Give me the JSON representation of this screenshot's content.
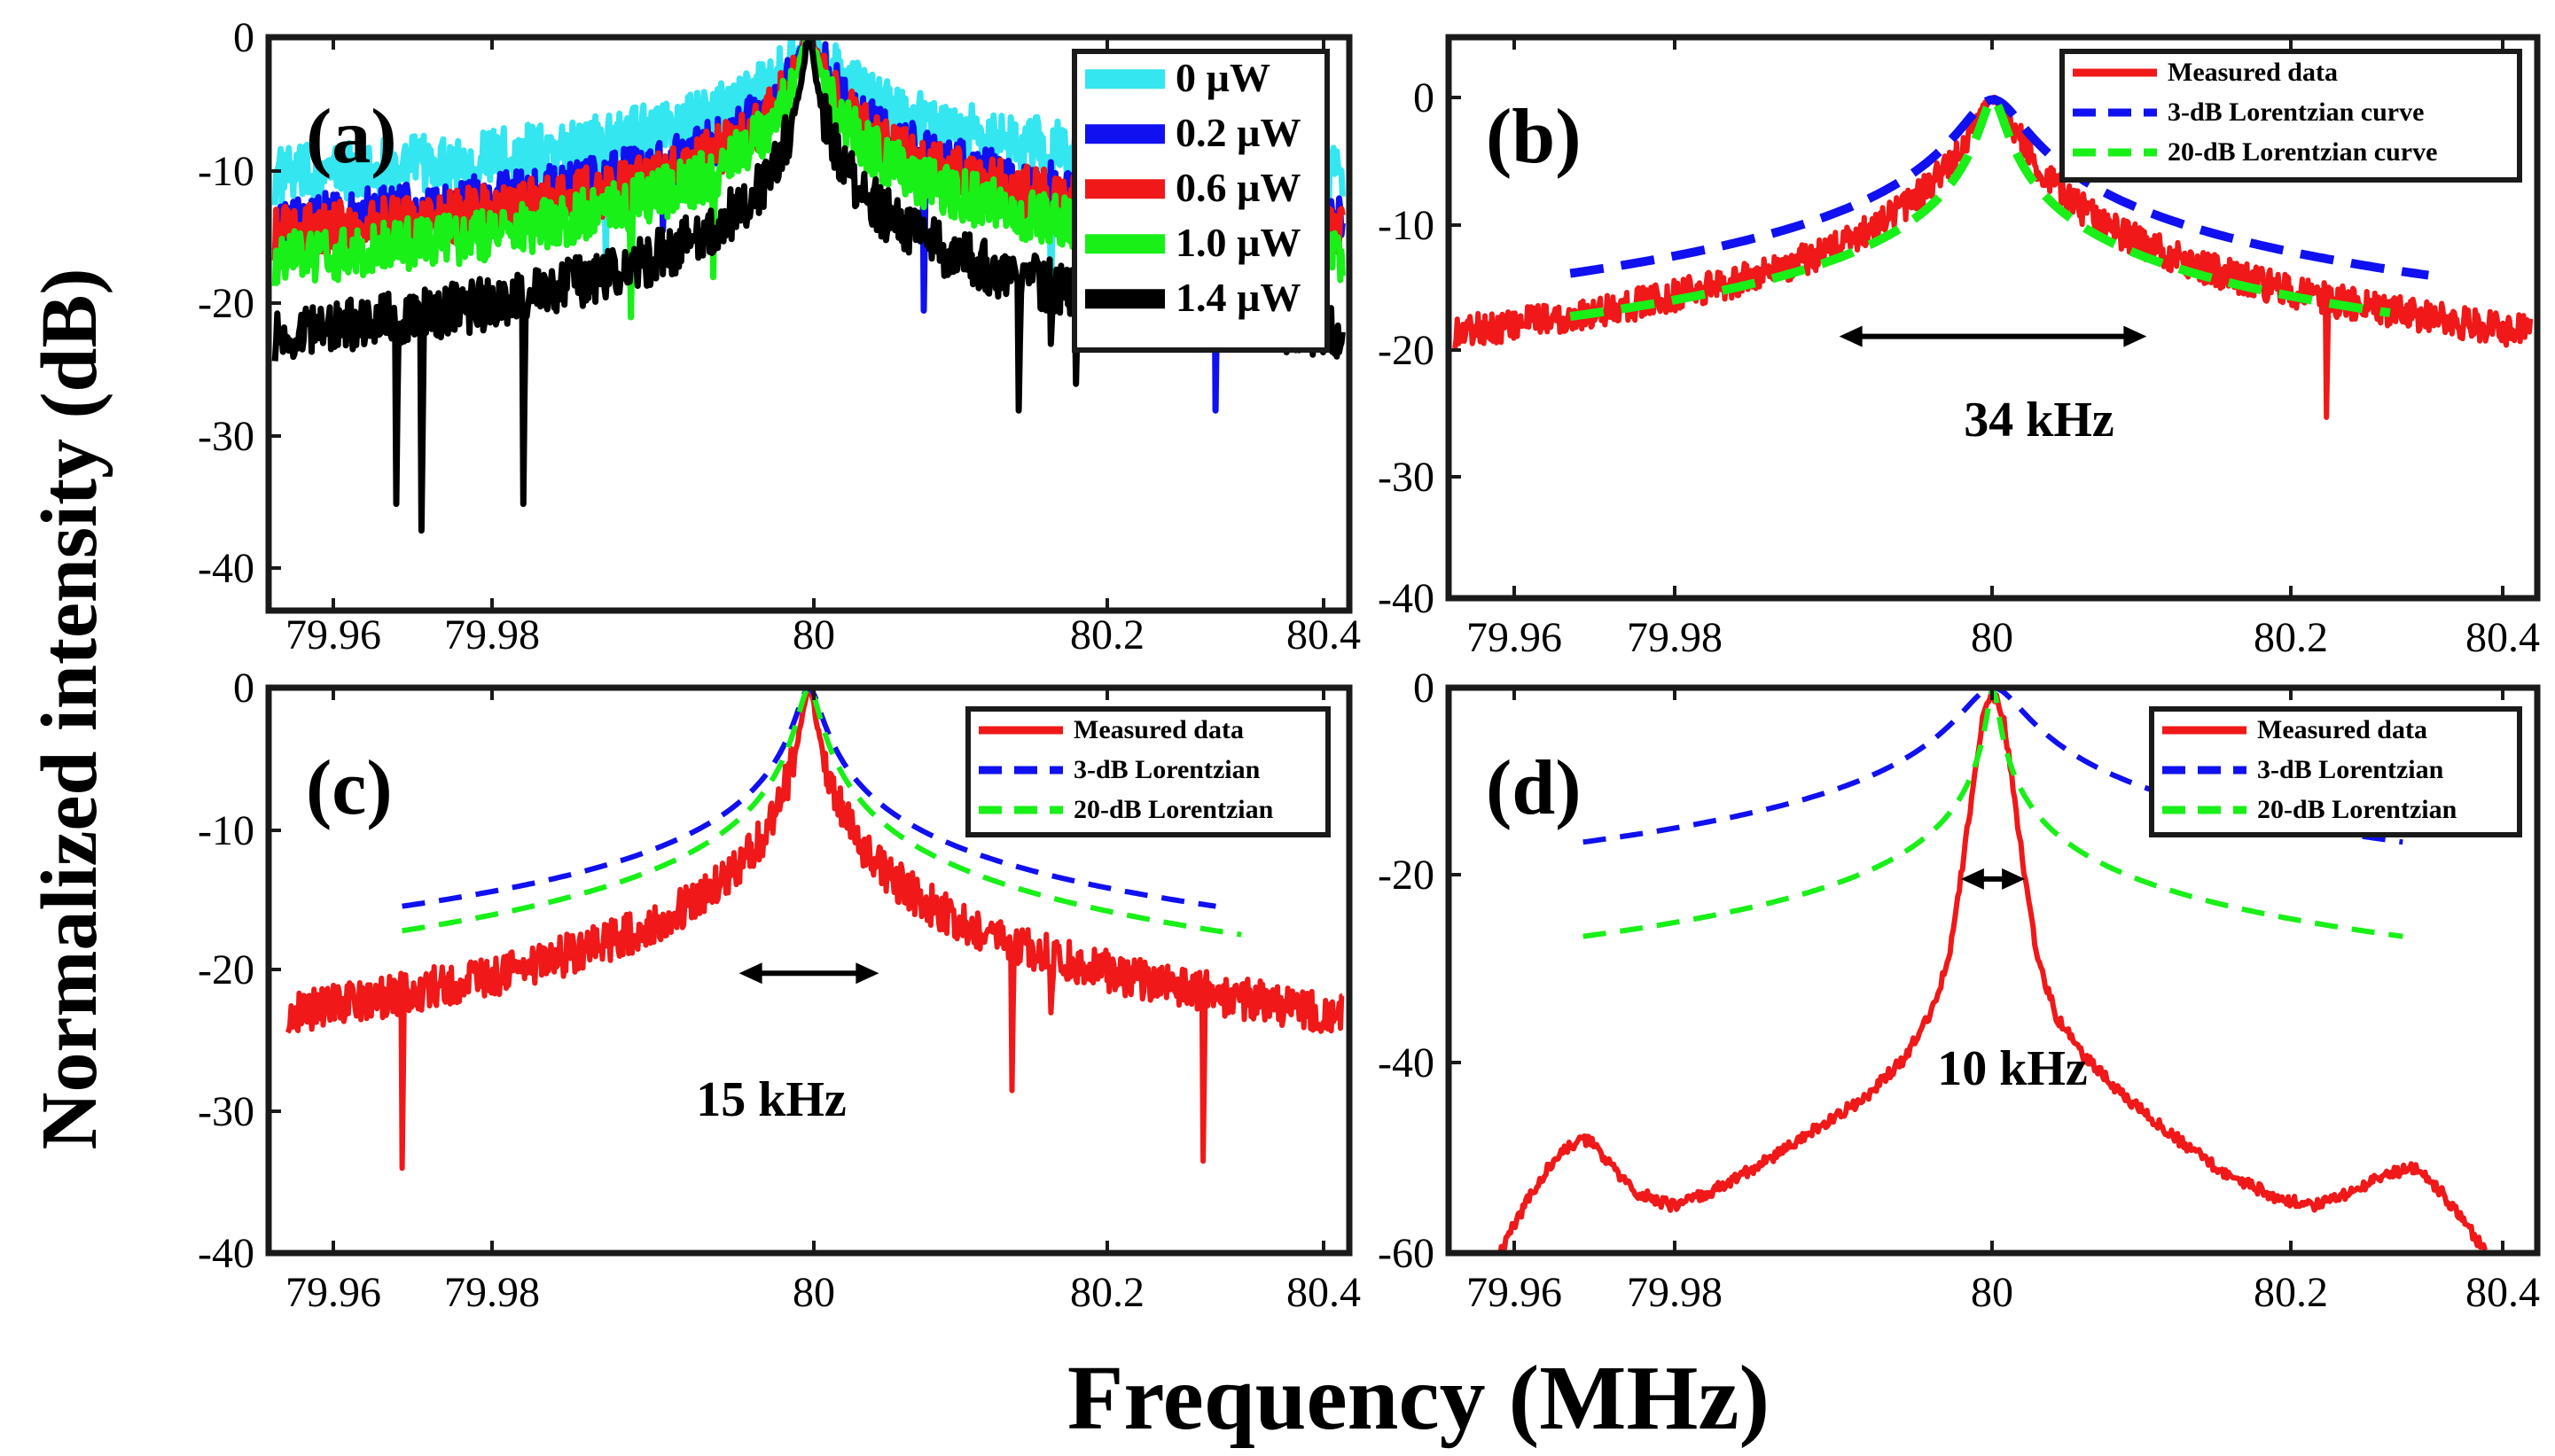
{
  "figure": {
    "ylabel": "Normalized intensity (dB)",
    "xlabel": "Frequency (MHz)"
  },
  "chart_data": [
    {
      "id": "a",
      "type": "line",
      "panel_label": "(a)",
      "x_ticks": [
        "79.96",
        "79.98",
        "80",
        "80.2",
        "80.4"
      ],
      "y_ticks": [
        "0",
        "-10",
        "-20",
        "-30",
        "-40"
      ],
      "ylim": [
        -43,
        0
      ],
      "legend_position": "top-right",
      "series": [
        {
          "name": "0 µW",
          "color": "#33e6f0",
          "dash": "solid",
          "style": "noisy",
          "center": -10.3,
          "width": 0.85,
          "tail": -33,
          "noise": 2.2,
          "x_range": [
            -42,
            42
          ],
          "spurs": [
            [
              -16,
              -16.5
            ],
            [
              19,
              -21.5
            ]
          ]
        },
        {
          "name": "0.2 µW",
          "color": "#1010f0",
          "dash": "solid",
          "style": "noisy",
          "center": -13.8,
          "width": 0.7,
          "tail": -36,
          "noise": 2.0,
          "x_range": [
            -42,
            42
          ],
          "spurs": [
            [
              -11.5,
              -14.5
            ],
            [
              9,
              -20.5
            ],
            [
              32,
              -28
            ]
          ]
        },
        {
          "name": "0.6 µW",
          "color": "#f01818",
          "dash": "solid",
          "style": "noisy",
          "center": -14.6,
          "width": 0.6,
          "tail": -36.5,
          "noise": 2.0,
          "x_range": [
            -42,
            42
          ],
          "spurs": []
        },
        {
          "name": "1.0 µW",
          "color": "#18f018",
          "dash": "solid",
          "style": "noisy",
          "center": -16.5,
          "width": 0.55,
          "tail": -37.5,
          "noise": 2.0,
          "x_range": [
            -42,
            42
          ],
          "spurs": [
            [
              -14,
              -21
            ],
            [
              -7.5,
              -18
            ]
          ]
        },
        {
          "name": "1.4 µW",
          "color": "#000000",
          "dash": "solid",
          "style": "noisy",
          "center": -22.1,
          "width": 0.35,
          "tail": -40,
          "noise": 2.0,
          "x_range": [
            -42,
            42
          ],
          "spurs": [
            [
              -32.5,
              -35
            ],
            [
              -30.5,
              -37
            ],
            [
              -22.5,
              -35
            ],
            [
              16.5,
              -28
            ],
            [
              19,
              -23
            ],
            [
              21,
              -26
            ]
          ]
        }
      ]
    },
    {
      "id": "b",
      "type": "line",
      "panel_label": "(b)",
      "x_ticks": [
        "79.96",
        "79.98",
        "80",
        "80.2",
        "80.4"
      ],
      "y_ticks": [
        "0",
        "-10",
        "-20",
        "-30",
        "-40"
      ],
      "ylim": [
        -40,
        5
      ],
      "annotation": "34 kHz",
      "arrow": {
        "x_from": -12,
        "x_to": 12,
        "y": -19
      },
      "legend_position": "top-right",
      "series": [
        {
          "name": "Measured data",
          "color": "#f01818",
          "dash": "solid",
          "style": "noisy",
          "center": -18.4,
          "width": 1.5,
          "tail": -34.5,
          "noise": 1.3,
          "x_range": [
            -42,
            42
          ],
          "spurs": [
            [
              26,
              -25.5
            ]
          ]
        },
        {
          "name": "3-dB Lorentzian curve",
          "color": "#1010f0",
          "dash": "dashed",
          "style": "smooth",
          "center": -14.9,
          "width": 2.0,
          "tail": -23,
          "x_range": [
            -33,
            34
          ]
        },
        {
          "name": "20-dB Lorentzian curve",
          "color": "#18f018",
          "dash": "dashed",
          "style": "smooth",
          "center": -18.3,
          "width": 0.8,
          "tail": -26.8,
          "x_range": [
            -33,
            31
          ]
        }
      ]
    },
    {
      "id": "c",
      "type": "line",
      "panel_label": "(c)",
      "x_ticks": [
        "79.96",
        "79.98",
        "80",
        "80.2",
        "80.4"
      ],
      "y_ticks": [
        "0",
        "-10",
        "-20",
        "-30",
        "-40"
      ],
      "ylim": [
        -40,
        0
      ],
      "annotation": "15 kHz",
      "arrow": {
        "x_from": -5.5,
        "x_to": 5.5,
        "y": -20.2
      },
      "legend_position": "top-right",
      "series": [
        {
          "name": "Measured data",
          "color": "#f01818",
          "dash": "solid",
          "style": "noisy",
          "center": -22.8,
          "width": 0.5,
          "tail": -40,
          "noise": 1.5,
          "x_range": [
            -41,
            42
          ],
          "spurs": [
            [
              -32,
              -34
            ],
            [
              16,
              -28.5
            ],
            [
              19,
              -23
            ],
            [
              31,
              -33.5
            ]
          ]
        },
        {
          "name": "3-dB Lorentzian",
          "color": "#1010f0",
          "dash": "dashed",
          "style": "smooth",
          "center": -16.4,
          "width": 0.8,
          "tail": -33.4,
          "x_range": [
            -32,
            32
          ]
        },
        {
          "name": "20-dB Lorentzian",
          "color": "#18f018",
          "dash": "dashed",
          "style": "smooth",
          "center": -18.2,
          "width": 0.7,
          "tail": -34.2,
          "x_range": [
            -32,
            34
          ]
        }
      ]
    },
    {
      "id": "d",
      "type": "line",
      "panel_label": "(d)",
      "x_ticks": [
        "79.96",
        "79.98",
        "80",
        "80.2",
        "80.4"
      ],
      "y_ticks": [
        "0",
        "-20",
        "-40",
        "-60"
      ],
      "ylim": [
        -60,
        0
      ],
      "annotation": "10 kHz",
      "arrow": {
        "x_from": -2.5,
        "x_to": 2.5,
        "y": -20.3
      },
      "legend_position": "top-right",
      "series": [
        {
          "name": "Measured data",
          "color": "#f01818",
          "dash": "solid",
          "style": "shaped",
          "noise": 0.6,
          "x_range": [
            -38.5,
            38.5
          ],
          "points": [
            [
              -38.5,
              -60
            ],
            [
              -37,
              -56
            ],
            [
              -35,
              -51.5
            ],
            [
              -33,
              -48.5
            ],
            [
              -31.5,
              -48
            ],
            [
              -30,
              -50.5
            ],
            [
              -28,
              -53.5
            ],
            [
              -25,
              -55
            ],
            [
              -22,
              -53.5
            ],
            [
              -18,
              -50.5
            ],
            [
              -14,
              -47
            ],
            [
              -10,
              -43.5
            ],
            [
              -7,
              -39.5
            ],
            [
              -5,
              -35
            ],
            [
              -3.5,
              -29
            ],
            [
              -2.5,
              -20
            ],
            [
              -1.5,
              -10
            ],
            [
              -0.8,
              -3
            ],
            [
              0,
              -0.5
            ],
            [
              0.8,
              -3
            ],
            [
              1.5,
              -10
            ],
            [
              2.5,
              -20
            ],
            [
              3.5,
              -29
            ],
            [
              5,
              -35
            ],
            [
              7,
              -39
            ],
            [
              10,
              -43
            ],
            [
              14,
              -47.5
            ],
            [
              18,
              -51.5
            ],
            [
              22,
              -54
            ],
            [
              25,
              -55
            ],
            [
              28,
              -53.5
            ],
            [
              31,
              -51.5
            ],
            [
              33,
              -51
            ],
            [
              35,
              -53.5
            ],
            [
              37,
              -57
            ],
            [
              38.5,
              -60
            ]
          ]
        },
        {
          "name": "3-dB Lorentzian",
          "color": "#1010f0",
          "dash": "dashed",
          "style": "smooth",
          "center": -17.7,
          "width": 2.0,
          "tail": -26.4,
          "x_range": [
            -32,
            32
          ]
        },
        {
          "name": "20-dB Lorentzian",
          "color": "#18f018",
          "dash": "dashed",
          "style": "smooth",
          "center": -27.7,
          "width": 0.35,
          "tail": -37.9,
          "x_range": [
            -32,
            32
          ]
        }
      ]
    }
  ]
}
